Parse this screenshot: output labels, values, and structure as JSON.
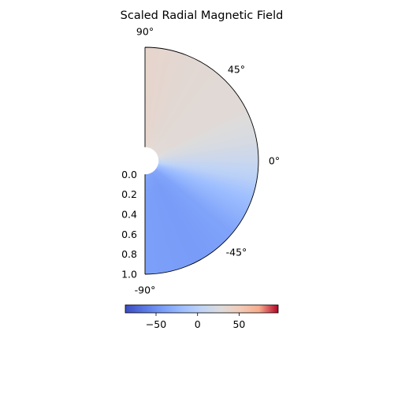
{
  "chart_data": {
    "type": "heatmap",
    "projection": "polar",
    "title": "Scaled Radial Magnetic Field",
    "theta_range_deg": [
      -90,
      90
    ],
    "r_range": [
      0.0,
      1.0
    ],
    "inner_radius_hole": 0.12,
    "theta_tick_labels": [
      {
        "deg": 90,
        "label": "90°"
      },
      {
        "deg": 45,
        "label": "45°"
      },
      {
        "deg": 0,
        "label": "0°"
      },
      {
        "deg": -45,
        "label": "-45°"
      },
      {
        "deg": -90,
        "label": "-90°"
      }
    ],
    "r_tick_labels": [
      "0.0",
      "0.2",
      "0.4",
      "0.6",
      "0.8",
      "1.0"
    ],
    "field_profile": [
      {
        "theta_deg": 90,
        "value": 38
      },
      {
        "theta_deg": 60,
        "value": 33
      },
      {
        "theta_deg": 30,
        "value": 32
      },
      {
        "theta_deg": 10,
        "value": 22
      },
      {
        "theta_deg": 0,
        "value": 12
      },
      {
        "theta_deg": -10,
        "value": 0
      },
      {
        "theta_deg": -20,
        "value": -18
      },
      {
        "theta_deg": -40,
        "value": -38
      },
      {
        "theta_deg": -60,
        "value": -43
      },
      {
        "theta_deg": -90,
        "value": -40
      }
    ],
    "colorbar": {
      "colormap": "coolwarm",
      "orientation": "horizontal",
      "vmin": -87,
      "vmax": 97,
      "tick_values": [
        -50,
        0,
        50
      ],
      "tick_labels": [
        "−50",
        "0",
        "50"
      ]
    }
  }
}
